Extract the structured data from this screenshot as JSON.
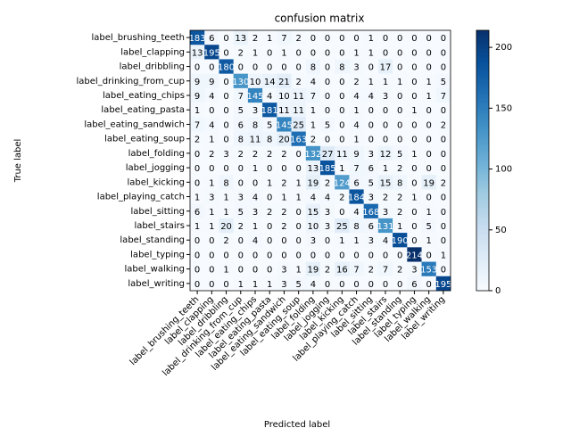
{
  "chart_data": {
    "type": "heatmap",
    "title": "confusion matrix",
    "x_label": "Predicted label",
    "y_label": "True label",
    "categories": [
      "label_brushing_teeth",
      "label_clapping",
      "label_dribbling",
      "label_drinking_from_cup",
      "label_eating_chips",
      "label_eating_pasta",
      "label_eating_sandwich",
      "label_eating_soup",
      "label_folding",
      "label_jogging",
      "label_kicking",
      "label_playing_catch",
      "label_sitting",
      "label_stairs",
      "label_standing",
      "label_typing",
      "label_walking",
      "label_writing"
    ],
    "values": [
      [
        183,
        6,
        0,
        13,
        2,
        1,
        7,
        2,
        0,
        0,
        0,
        0,
        1,
        0,
        0,
        0,
        0,
        0
      ],
      [
        13,
        195,
        0,
        2,
        1,
        0,
        1,
        0,
        0,
        0,
        0,
        1,
        1,
        0,
        0,
        0,
        0,
        0
      ],
      [
        0,
        0,
        180,
        0,
        0,
        0,
        0,
        0,
        8,
        0,
        8,
        3,
        0,
        17,
        0,
        0,
        0,
        0
      ],
      [
        9,
        9,
        0,
        130,
        10,
        14,
        21,
        2,
        4,
        0,
        0,
        2,
        1,
        1,
        1,
        0,
        1,
        5
      ],
      [
        9,
        4,
        0,
        7,
        145,
        4,
        10,
        11,
        7,
        0,
        0,
        4,
        4,
        3,
        0,
        0,
        1,
        7
      ],
      [
        1,
        0,
        0,
        5,
        3,
        181,
        11,
        11,
        1,
        0,
        0,
        1,
        0,
        0,
        0,
        1,
        0,
        0
      ],
      [
        7,
        4,
        0,
        6,
        8,
        5,
        145,
        25,
        1,
        5,
        0,
        4,
        0,
        0,
        0,
        0,
        0,
        2
      ],
      [
        2,
        1,
        0,
        8,
        11,
        8,
        20,
        163,
        2,
        0,
        0,
        1,
        0,
        0,
        0,
        0,
        0,
        0
      ],
      [
        0,
        2,
        3,
        2,
        2,
        2,
        2,
        0,
        132,
        27,
        11,
        9,
        3,
        12,
        5,
        1,
        0,
        0
      ],
      [
        0,
        0,
        0,
        0,
        1,
        0,
        0,
        0,
        13,
        185,
        1,
        7,
        6,
        1,
        2,
        0,
        0,
        0
      ],
      [
        0,
        1,
        8,
        0,
        0,
        1,
        2,
        1,
        19,
        2,
        124,
        6,
        5,
        15,
        8,
        0,
        19,
        2
      ],
      [
        1,
        3,
        1,
        3,
        4,
        0,
        1,
        1,
        4,
        4,
        2,
        184,
        3,
        2,
        2,
        1,
        0,
        0
      ],
      [
        6,
        1,
        1,
        5,
        3,
        2,
        2,
        0,
        15,
        3,
        0,
        4,
        168,
        3,
        2,
        0,
        1,
        0
      ],
      [
        1,
        1,
        20,
        2,
        1,
        0,
        2,
        0,
        10,
        3,
        25,
        8,
        6,
        131,
        1,
        0,
        5,
        0
      ],
      [
        0,
        0,
        2,
        0,
        4,
        0,
        0,
        0,
        3,
        0,
        1,
        1,
        3,
        4,
        190,
        0,
        1,
        0
      ],
      [
        0,
        0,
        0,
        0,
        0,
        0,
        0,
        0,
        0,
        0,
        0,
        0,
        0,
        0,
        0,
        214,
        0,
        1
      ],
      [
        0,
        0,
        1,
        0,
        0,
        0,
        3,
        1,
        19,
        2,
        16,
        7,
        2,
        7,
        2,
        3,
        153,
        0
      ],
      [
        0,
        0,
        0,
        1,
        1,
        1,
        3,
        5,
        4,
        0,
        0,
        0,
        0,
        0,
        0,
        6,
        0,
        195
      ]
    ],
    "colormap": "Blues",
    "clim": [
      0,
      214
    ],
    "colorbar_ticks": [
      0,
      50,
      100,
      150,
      200
    ]
  }
}
